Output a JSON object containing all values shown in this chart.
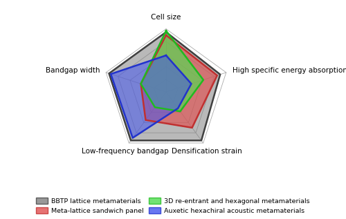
{
  "categories": [
    "Cell size",
    "High specific energy absorption",
    "Densification strain",
    "Low-frequency bandgap",
    "Bandgap width"
  ],
  "series": [
    {
      "label": "BBTP lattice metamaterials",
      "color": "#808080",
      "edge_color": "#404040",
      "alpha": 0.55,
      "values": [
        0.95,
        0.9,
        0.95,
        0.95,
        0.95
      ]
    },
    {
      "label": "Meta-lattice sandwich panel",
      "color": "#e05050",
      "edge_color": "#c03030",
      "alpha": 0.65,
      "values": [
        0.9,
        0.85,
        0.7,
        0.55,
        0.42
      ]
    },
    {
      "label": "3D re-entrant and hexagonal metamaterials",
      "color": "#50dd50",
      "edge_color": "#20bb20",
      "alpha": 0.65,
      "values": [
        0.97,
        0.62,
        0.38,
        0.3,
        0.42
      ]
    },
    {
      "label": "Auxetic hexachiral acoustic metamaterials",
      "color": "#4455ee",
      "edge_color": "#2233cc",
      "alpha": 0.55,
      "values": [
        0.58,
        0.42,
        0.32,
        0.9,
        0.92
      ]
    }
  ],
  "grid_levels": [
    0.2,
    0.4,
    0.6,
    0.8,
    1.0
  ],
  "bg_color": "#ffffff",
  "figsize": [
    5.0,
    3.17
  ],
  "dpi": 100,
  "label_positions": {
    "Cell size": {
      "r": 1.13,
      "ha": "center",
      "va": "bottom"
    },
    "High specific energy absorption": {
      "r": 1.1,
      "ha": "left",
      "va": "center"
    },
    "Densification strain": {
      "r": 1.1,
      "ha": "center",
      "va": "top"
    },
    "Low-frequency bandgap": {
      "r": 1.1,
      "ha": "center",
      "va": "top"
    },
    "Bandgap width": {
      "r": 1.1,
      "ha": "right",
      "va": "center"
    }
  }
}
